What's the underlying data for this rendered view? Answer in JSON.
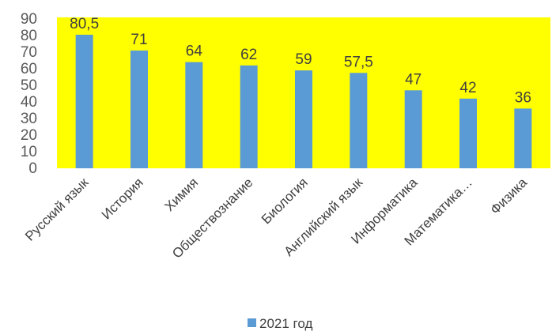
{
  "chart_data": {
    "type": "bar",
    "categories": [
      "Русский язык",
      "История",
      "Химия",
      "Обществознание",
      "Биология",
      "Английский язык",
      "Информатика",
      "Математика…",
      "Физика"
    ],
    "series": [
      {
        "name": "2021 год",
        "values": [
          80.5,
          71,
          64,
          62,
          59,
          57.5,
          47,
          42,
          36
        ]
      }
    ],
    "data_labels": [
      "80,5",
      "71",
      "64",
      "62",
      "59",
      "57,5",
      "47",
      "42",
      "36"
    ],
    "y_ticks": [
      "0",
      "10",
      "20",
      "30",
      "40",
      "50",
      "60",
      "70",
      "80",
      "90"
    ],
    "ylim": [
      0,
      90
    ],
    "grid": false,
    "legend_position": "bottom",
    "colors": {
      "bar": "#5b9bd5",
      "plot_background": "#ffff00"
    }
  }
}
